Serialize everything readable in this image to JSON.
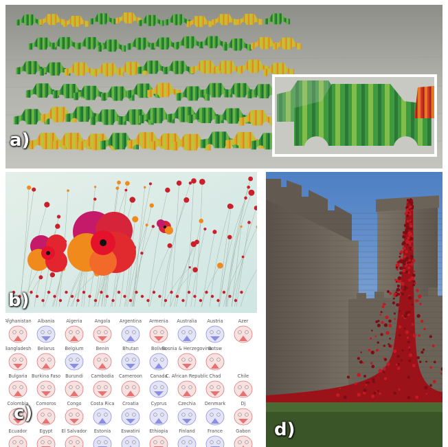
{
  "panels": {
    "a": {
      "label": "a)",
      "subject": "paper-cars",
      "colors": {
        "green": "#2e8b3a",
        "yellow": "#e5b22e",
        "red": "#c9302c",
        "table": "#a9a9a3"
      }
    },
    "b": {
      "label": "b)",
      "subject": "poppy-flowers-visualization",
      "colors": {
        "background": "#d7ebe7",
        "poppy_red": "#d0202c",
        "poppy_orange": "#f08a1c",
        "poppy_magenta": "#c51a6a"
      }
    },
    "c": {
      "label": "c)",
      "subject": "country-faces-grid",
      "colors": {
        "red_face": "#e57373",
        "blue_face": "#8c8fe0",
        "background": "#ffffff"
      },
      "rows": [
        [
          "Afghanistan",
          "Albania",
          "Algeria",
          "Angola",
          "Argentina",
          "Armenia",
          "Australia",
          "Austria",
          "Azer"
        ],
        [
          "Bangladesh",
          "Belarus",
          "Belgium",
          "Benin",
          "Bhutan",
          "Bolivia",
          "Bosnia & Herzegovina",
          "Botsw"
        ],
        [
          "Bulgaria",
          "Burkina Faso",
          "Burundi",
          "Cambodia",
          "Cameroon",
          "Canada",
          "C. African Republic",
          "Chad",
          "Chile"
        ],
        [
          "Colombia",
          "Comoros",
          "Congo",
          "Costa Rica",
          "Croatia",
          "Cyprus",
          "Czechia",
          "Denmark",
          "Dj"
        ],
        [
          "Ecuador",
          "Egypt",
          "El Salvador",
          "Estonia",
          "Eswatini",
          "Ethiopia",
          "Finland",
          "France",
          "Gabon"
        ]
      ]
    },
    "d": {
      "label": "d)",
      "subject": "castle-poppy-cascade",
      "colors": {
        "stone": "#6f665c",
        "sky": "#6f9ad0",
        "poppy": "#a8151c",
        "grass": "#3d5a2a"
      }
    }
  }
}
